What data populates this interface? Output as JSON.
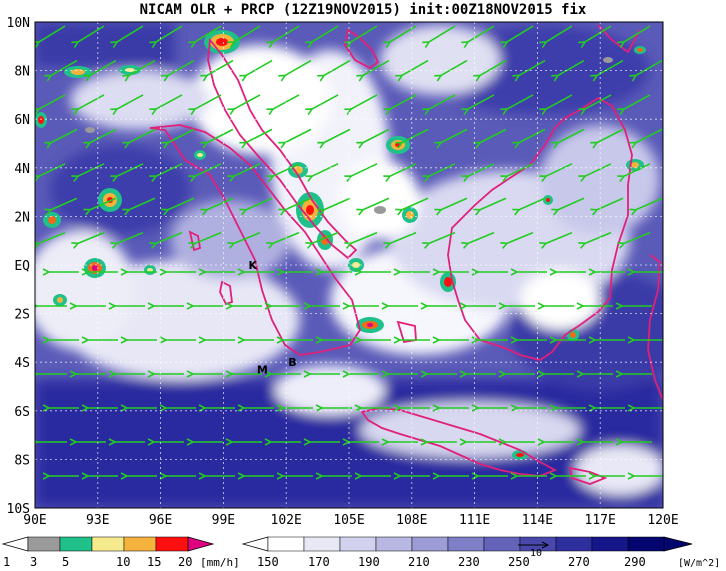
{
  "title": "NICAM OLR + PRCP (12Z19NOV2015) init:00Z18NOV2015 fix",
  "lat_labels": [
    "10N",
    "8N",
    "6N",
    "4N",
    "2N",
    "EQ",
    "2S",
    "4S",
    "6S",
    "8S",
    "10S"
  ],
  "lon_labels": [
    "90E",
    "93E",
    "96E",
    "99E",
    "102E",
    "105E",
    "108E",
    "111E",
    "114E",
    "117E",
    "120E"
  ],
  "markers": [
    {
      "text": "K",
      "lon": 100.2,
      "lat": 0.0
    },
    {
      "text": "M",
      "lon": 100.6,
      "lat": -4.3
    },
    {
      "text": "B",
      "lon": 102.1,
      "lat": -4.0
    }
  ],
  "precip_legend": {
    "ticks": [
      "1",
      "3",
      "5",
      "10",
      "15",
      "20"
    ],
    "unit": "[mm/h]",
    "colors": [
      "#9a9a9a",
      "#1fc08a",
      "#f5eb8e",
      "#f5b23d",
      "#f06a1a",
      "#ff1010",
      "#e0007f"
    ]
  },
  "olr_legend": {
    "ticks": [
      "150",
      "170",
      "190",
      "210",
      "230",
      "250",
      "270",
      "290"
    ],
    "unit": "[W/m^2]",
    "colors": [
      "#ffffff",
      "#e9e9f6",
      "#d2d2ee",
      "#b8b8e2",
      "#9c9cd6",
      "#7f7fc8",
      "#6363ba",
      "#4848ac",
      "#2e2e9e",
      "#16168a",
      "#050570"
    ],
    "vector_scale": "10"
  }
}
